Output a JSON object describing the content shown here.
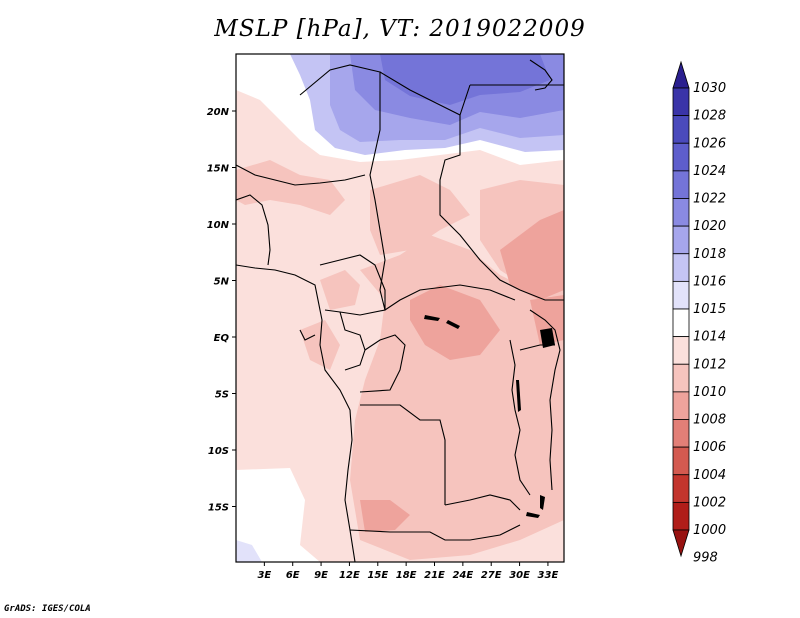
{
  "title": "MSLP [hPa], VT: 2019022009",
  "credit": "GrADS: IGES/COLA",
  "axes": {
    "lon_labels": [
      "3E",
      "6E",
      "9E",
      "12E",
      "15E",
      "18E",
      "21E",
      "24E",
      "27E",
      "30E",
      "33E"
    ],
    "lat_labels": [
      "20N",
      "15N",
      "10N",
      "5N",
      "EQ",
      "5S",
      "10S",
      "15S"
    ]
  },
  "colorbar": {
    "levels": [
      "1030",
      "1028",
      "1026",
      "1024",
      "1022",
      "1020",
      "1018",
      "1016",
      "1015",
      "1014",
      "1012",
      "1010",
      "1008",
      "1006",
      "1004",
      "1002",
      "1000",
      "998"
    ],
    "colors": [
      "#2a1f8f",
      "#3a34a8",
      "#4a4abc",
      "#5e5ecc",
      "#7474d8",
      "#8a8ae2",
      "#a6a6ec",
      "#c4c4f4",
      "#e2e2fa",
      "#ffffff",
      "#fbe0dc",
      "#f6c4be",
      "#eea39c",
      "#e27f77",
      "#d35a50",
      "#c3352d",
      "#b01d19",
      "#981211"
    ]
  },
  "colors": {
    "frame": "#000000",
    "background_field": "#fbe0dc"
  }
}
